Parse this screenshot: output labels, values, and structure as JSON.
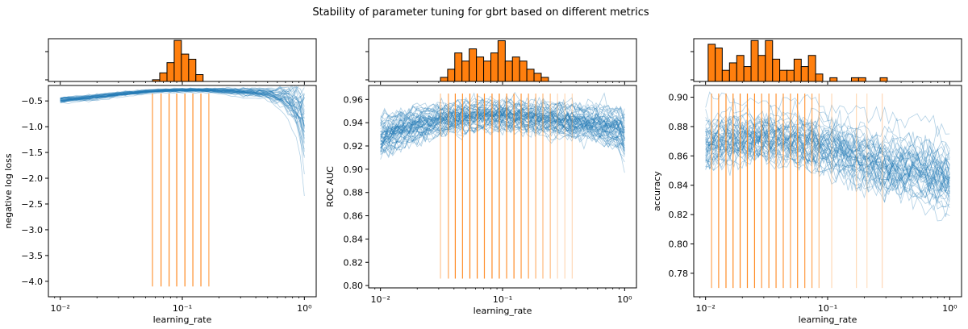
{
  "figure": {
    "title": "Stability of parameter tuning for gbrt based on different metrics"
  },
  "chart_data": [
    {
      "type": "line",
      "title": "",
      "xlabel": "learning_rate",
      "ylabel": "negative log loss",
      "xscale": "log",
      "xlim": [
        0.008,
        1.25
      ],
      "ylim": [
        -4.3,
        -0.2
      ],
      "x_ticks": [
        0.01,
        0.1,
        1
      ],
      "x_tick_labels": [
        "10⁻²",
        "10⁻¹",
        "10⁰"
      ],
      "y_ticks": [
        -0.5,
        -1.0,
        -1.5,
        -2.0,
        -2.5,
        -3.0,
        -3.5,
        -4.0
      ],
      "y_tick_labels": [
        "−0.5",
        "−1.0",
        "−1.5",
        "−2.0",
        "−2.5",
        "−3.0",
        "−3.5",
        "−4.0"
      ],
      "curve_band": {
        "x": [
          0.01,
          0.015,
          0.02,
          0.03,
          0.05,
          0.07,
          0.1,
          0.15,
          0.2,
          0.3,
          0.5,
          0.7,
          0.85,
          1.0
        ],
        "center": [
          -0.48,
          -0.45,
          -0.42,
          -0.37,
          -0.32,
          -0.3,
          -0.29,
          -0.29,
          -0.3,
          -0.32,
          -0.36,
          -0.45,
          -0.6,
          -0.9
        ],
        "spread": [
          0.03,
          0.03,
          0.03,
          0.025,
          0.02,
          0.02,
          0.02,
          0.02,
          0.03,
          0.04,
          0.06,
          0.12,
          0.25,
          0.5
        ],
        "n_lines": 40
      },
      "selected_learning_rates": [
        0.057,
        0.067,
        0.078,
        0.09,
        0.105,
        0.122,
        0.142,
        0.165
      ],
      "selected_alpha": [
        0.8,
        0.9,
        0.9,
        0.95,
        0.95,
        0.9,
        0.9,
        0.7
      ],
      "vline_bottom": -4.1,
      "histogram": {
        "bin_edges": [
          0.057,
          0.0653,
          0.0749,
          0.0858,
          0.0983,
          0.1127,
          0.1291,
          0.148,
          0.1696
        ],
        "counts": [
          1,
          5,
          11,
          24,
          16,
          13,
          4,
          0
        ],
        "ylim": [
          0,
          25
        ]
      }
    },
    {
      "type": "line",
      "title": "",
      "xlabel": "learning_rate",
      "ylabel": "ROC AUC",
      "xscale": "log",
      "xlim": [
        0.008,
        1.25
      ],
      "ylim": [
        0.798,
        0.972
      ],
      "x_ticks": [
        0.01,
        0.1,
        1
      ],
      "x_tick_labels": [
        "10⁻²",
        "10⁻¹",
        "10⁰"
      ],
      "y_ticks": [
        0.8,
        0.82,
        0.84,
        0.86,
        0.88,
        0.9,
        0.92,
        0.94,
        0.96
      ],
      "y_tick_labels": [
        "0.80",
        "0.82",
        "0.84",
        "0.86",
        "0.88",
        "0.90",
        "0.92",
        "0.94",
        "0.96"
      ],
      "curve_band": {
        "x": [
          0.01,
          0.015,
          0.02,
          0.03,
          0.05,
          0.07,
          0.1,
          0.15,
          0.2,
          0.3,
          0.5,
          0.7,
          0.9,
          1.0
        ],
        "center": [
          0.927,
          0.934,
          0.938,
          0.942,
          0.945,
          0.946,
          0.946,
          0.945,
          0.944,
          0.942,
          0.94,
          0.937,
          0.935,
          0.928
        ],
        "spread": [
          0.012,
          0.011,
          0.01,
          0.009,
          0.009,
          0.009,
          0.009,
          0.009,
          0.009,
          0.01,
          0.01,
          0.011,
          0.012,
          0.014
        ],
        "n_lines": 60
      },
      "selected_learning_rates": [
        0.031,
        0.036,
        0.041,
        0.047,
        0.054,
        0.062,
        0.071,
        0.082,
        0.094,
        0.108,
        0.124,
        0.142,
        0.163,
        0.187,
        0.214,
        0.246,
        0.282,
        0.324,
        0.372
      ],
      "selected_alpha": [
        0.45,
        0.7,
        0.9,
        0.85,
        0.95,
        0.95,
        0.85,
        0.9,
        0.95,
        0.85,
        0.9,
        0.8,
        0.75,
        0.6,
        0.55,
        0.5,
        0.3,
        0.3,
        0.3
      ],
      "vline_bottom": 0.806,
      "histogram": {
        "bin_edges": [
          0.031,
          0.0355,
          0.0406,
          0.0465,
          0.0533,
          0.0611,
          0.07,
          0.0802,
          0.0918,
          0.1052,
          0.1205,
          0.138,
          0.1581,
          0.1811,
          0.2075,
          0.2377,
          0.2723,
          0.3119,
          0.3573,
          0.4093
        ],
        "counts": [
          1,
          3,
          7,
          5,
          8,
          6,
          5,
          7,
          10,
          5,
          6,
          5,
          3,
          2,
          1,
          0,
          0,
          0,
          0
        ],
        "ylim": [
          0,
          10.5
        ]
      }
    },
    {
      "type": "line",
      "title": "",
      "xlabel": "learning_rate",
      "ylabel": "accuracy",
      "xscale": "log",
      "xlim": [
        0.008,
        1.25
      ],
      "ylim": [
        0.764,
        0.908
      ],
      "x_ticks": [
        0.01,
        0.1,
        1
      ],
      "x_tick_labels": [
        "10⁻²",
        "10⁻¹",
        "10⁰"
      ],
      "y_ticks": [
        0.78,
        0.8,
        0.82,
        0.84,
        0.86,
        0.88,
        0.9
      ],
      "y_tick_labels": [
        "0.78",
        "0.80",
        "0.82",
        "0.84",
        "0.86",
        "0.88",
        "0.90"
      ],
      "curve_band": {
        "x": [
          0.01,
          0.015,
          0.02,
          0.03,
          0.05,
          0.07,
          0.1,
          0.15,
          0.2,
          0.3,
          0.5,
          0.7,
          1.0
        ],
        "center": [
          0.87,
          0.873,
          0.874,
          0.874,
          0.873,
          0.871,
          0.868,
          0.864,
          0.86,
          0.856,
          0.853,
          0.85,
          0.847
        ],
        "spread": [
          0.012,
          0.011,
          0.011,
          0.011,
          0.011,
          0.012,
          0.012,
          0.013,
          0.013,
          0.014,
          0.014,
          0.014,
          0.014
        ],
        "n_lines": 50
      },
      "selected_learning_rates": [
        0.0112,
        0.0128,
        0.0147,
        0.0168,
        0.0192,
        0.022,
        0.0252,
        0.0288,
        0.033,
        0.0378,
        0.0433,
        0.0496,
        0.0567,
        0.065,
        0.0744,
        0.085,
        0.108,
        0.172,
        0.21,
        0.28
      ],
      "selected_alpha": [
        0.7,
        0.85,
        0.9,
        0.9,
        0.95,
        0.9,
        0.9,
        0.8,
        0.85,
        0.85,
        0.8,
        0.75,
        0.85,
        0.8,
        0.7,
        0.5,
        0.3,
        0.3,
        0.25,
        0.3
      ],
      "vline_bottom": 0.77,
      "histogram": {
        "bin_edges": [
          0.0105,
          0.012,
          0.0137,
          0.0157,
          0.018,
          0.0206,
          0.0236,
          0.027,
          0.0309,
          0.0354,
          0.0405,
          0.0464,
          0.0531,
          0.0608,
          0.0696,
          0.0797,
          0.0912,
          0.1044,
          0.1195,
          0.1368,
          0.1566,
          0.1793,
          0.2053,
          0.235,
          0.269,
          0.3079
        ],
        "counts": [
          10,
          9,
          3,
          5,
          7,
          4,
          11,
          7,
          11,
          6,
          3,
          3,
          6,
          4,
          7,
          2,
          0,
          1,
          0,
          0,
          1,
          1,
          0,
          0,
          1
        ],
        "ylim": [
          0,
          11.5
        ]
      }
    }
  ],
  "colors": {
    "line_blue": "#1f77b4",
    "bar_orange": "#ff7f0e",
    "vline_orange": "#ff7f0e",
    "axis_black": "#000000"
  }
}
